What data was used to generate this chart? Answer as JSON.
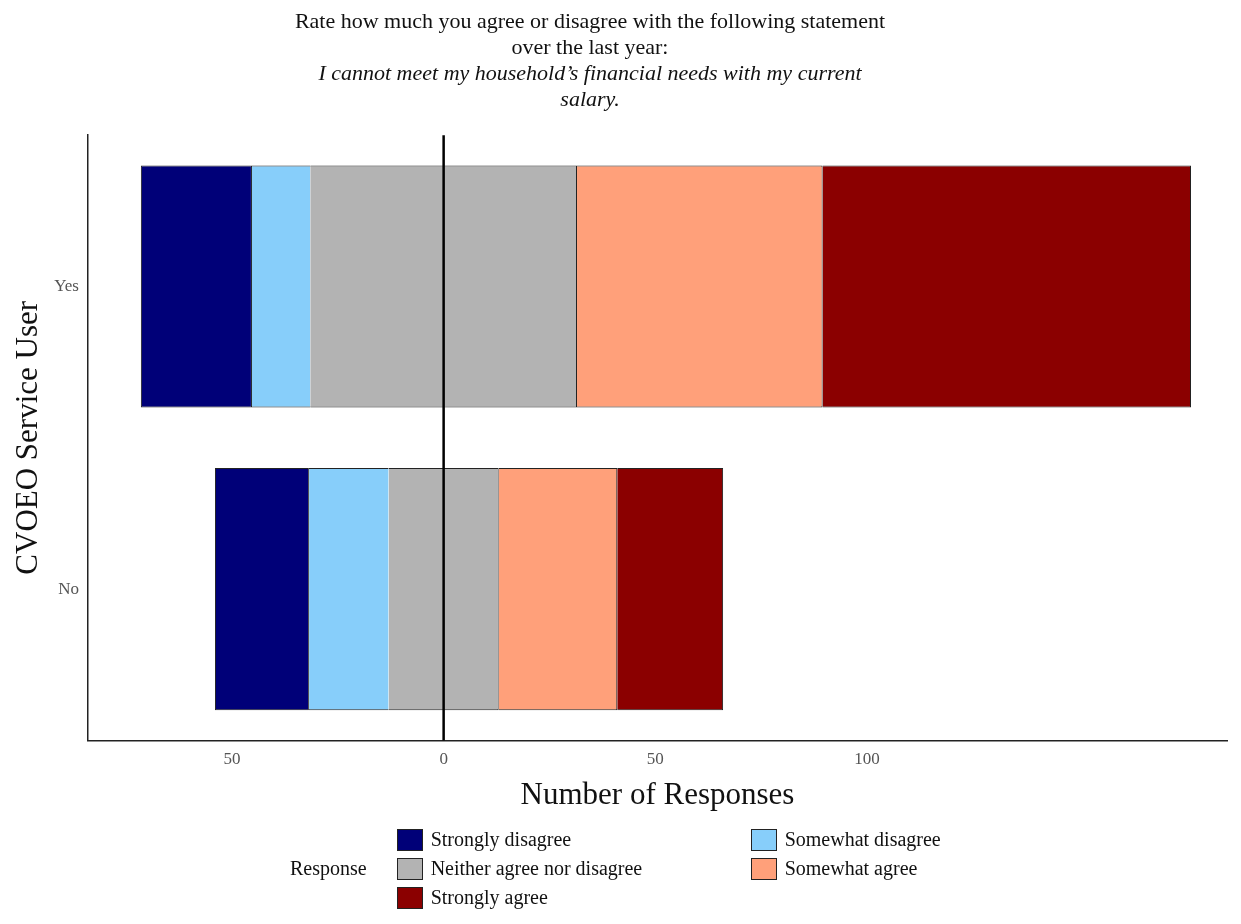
{
  "chart_data": {
    "type": "bar",
    "orientation": "horizontal",
    "title": "Rate how much you agree or disagree with the following statement over the last year:",
    "subtitle": "I cannot meet my household’s financial needs with my current salary.",
    "xlabel": "Number of Responses",
    "ylabel": "CVOEO Service User",
    "legend_title": "Response",
    "categories": [
      "Yes",
      "No"
    ],
    "series": [
      {
        "name": "Strongly disagree",
        "color": "#000078",
        "values": [
          26,
          22
        ],
        "base": [
          -71.5,
          -54
        ]
      },
      {
        "name": "Somewhat disagree",
        "color": "#87cefa",
        "values": [
          14,
          19
        ],
        "base": [
          -45.5,
          -32
        ]
      },
      {
        "name": "Neither agree nor disagree",
        "color": "#b3b3b3",
        "values": [
          63,
          26
        ],
        "base": [
          -31.5,
          -13
        ]
      },
      {
        "name": "Somewhat agree",
        "color": "#ffa07a",
        "values": [
          58,
          28
        ],
        "base": [
          31.5,
          13
        ]
      },
      {
        "name": "Strongly agree",
        "color": "#8b0000",
        "values": [
          87,
          25
        ],
        "base": [
          89.5,
          41
        ]
      }
    ],
    "xlim": [
      -84,
      185
    ],
    "xticks": [
      {
        "value": -50,
        "label": "50"
      },
      0,
      50,
      100
    ],
    "ref_lines": [
      {
        "axis": "x",
        "value": 0,
        "color": "#000000"
      }
    ],
    "grid": false,
    "legend": "bottom"
  }
}
